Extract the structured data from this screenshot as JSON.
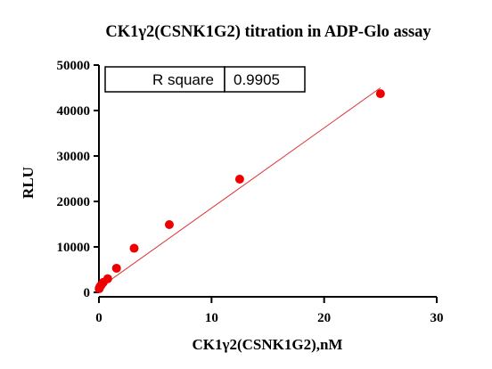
{
  "chart_data": {
    "type": "scatter",
    "title": "CK1γ2(CSNK1G2) titration in ADP-Glo assay",
    "xlabel": "CK1γ2(CSNK1G2),nM",
    "ylabel": "RLU",
    "xlim": [
      0,
      30
    ],
    "ylim": [
      0,
      50000
    ],
    "x_ticks": [
      0,
      10,
      20,
      30
    ],
    "x_tick_labels": [
      "0",
      "10",
      "20",
      "30"
    ],
    "y_ticks": [
      0,
      10000,
      20000,
      30000,
      40000,
      50000
    ],
    "y_tick_labels": [
      "0",
      "10000",
      "20000",
      "30000",
      "40000",
      "50000"
    ],
    "grid": false,
    "points": [
      {
        "x": 0.02,
        "y": 800
      },
      {
        "x": 0.05,
        "y": 1000
      },
      {
        "x": 0.1,
        "y": 1300
      },
      {
        "x": 0.2,
        "y": 1600
      },
      {
        "x": 0.39,
        "y": 2200
      },
      {
        "x": 0.78,
        "y": 3000
      },
      {
        "x": 1.56,
        "y": 5300
      },
      {
        "x": 3.125,
        "y": 9700
      },
      {
        "x": 6.25,
        "y": 14900
      },
      {
        "x": 12.5,
        "y": 24900
      },
      {
        "x": 25,
        "y": 43700
      }
    ],
    "fit_line": {
      "x": [
        0,
        25
      ],
      "y": [
        900,
        45000
      ]
    },
    "point_color": "#ee0000",
    "line_color": "#e03030",
    "stats_table": {
      "label": "R square",
      "value": "0.9905"
    }
  }
}
